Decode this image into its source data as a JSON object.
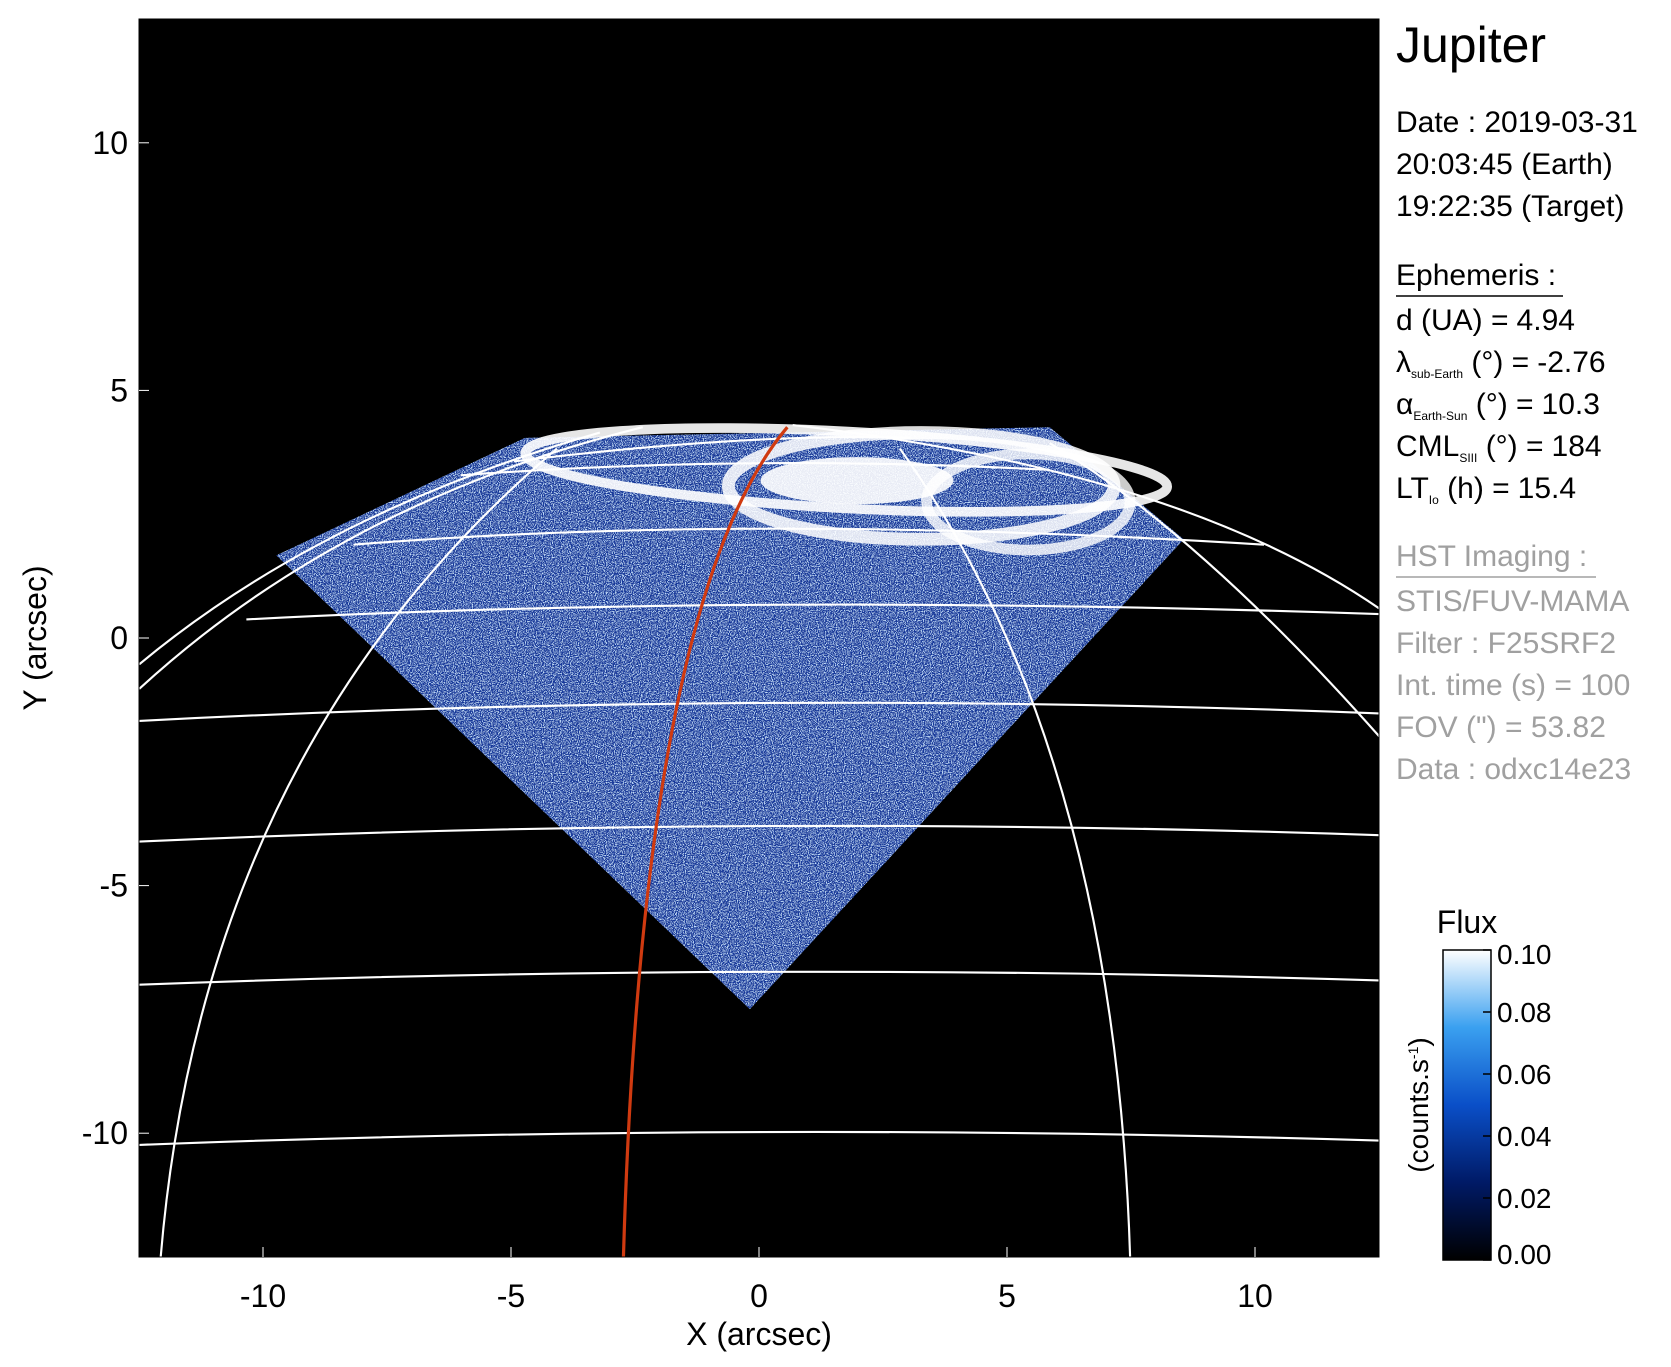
{
  "chart_data": {
    "type": "image",
    "xlabel": "X (arcsec)",
    "ylabel": "Y (arcsec)",
    "xlim": [
      -12.5,
      12.5
    ],
    "ylim": [
      -12.5,
      12.5
    ],
    "xticks": [
      -10,
      -5,
      0,
      5,
      10
    ],
    "yticks": [
      -10,
      -5,
      0,
      5,
      10
    ],
    "colorbar": {
      "title": "Flux",
      "unit": {
        "text": "(counts.s",
        "sup": "-1",
        "end": ")"
      },
      "lim": [
        0,
        0.1
      ],
      "ticks": [
        {
          "value": 0,
          "label": "0.00"
        },
        0.02,
        0.04,
        0.06,
        0.08,
        {
          "value": 0.1,
          "label": "0.10"
        }
      ],
      "colors": [
        "#000000",
        "#001a66",
        "#0a4fc8",
        "#3aa0f0",
        "#ffffff"
      ]
    },
    "info": {
      "title": "Jupiter",
      "date": [
        "Date : 2019-03-31",
        "20:03:45 (Earth)",
        "19:22:35 (Target)"
      ],
      "ephemeris": {
        "header": "Ephemeris :",
        "items": [
          {
            "label": "d (UA)",
            "rest": "  =",
            "value": 4.94
          },
          {
            "label": "λ",
            "sub": "sub-Earth",
            "rest": " (°) =",
            "value": -2.76
          },
          {
            "label": "α",
            "sub": "Earth-Sun",
            "rest": " (°) =",
            "value": 10.3
          },
          {
            "label": "CML",
            "sub": "SIII",
            "rest": " (°) =",
            "value": 184
          },
          {
            "label": "LT",
            "sub": "Io",
            "rest": " (h) =",
            "value": 15.4
          }
        ]
      },
      "imaging": {
        "header": "HST Imaging :",
        "lines": [
          "STIS/FUV-MAMA",
          "Filter : F25SRF2",
          "Int. time (s) = 100",
          "FOV (\") = 53.82",
          "Data : odxc14e23"
        ]
      }
    }
  }
}
